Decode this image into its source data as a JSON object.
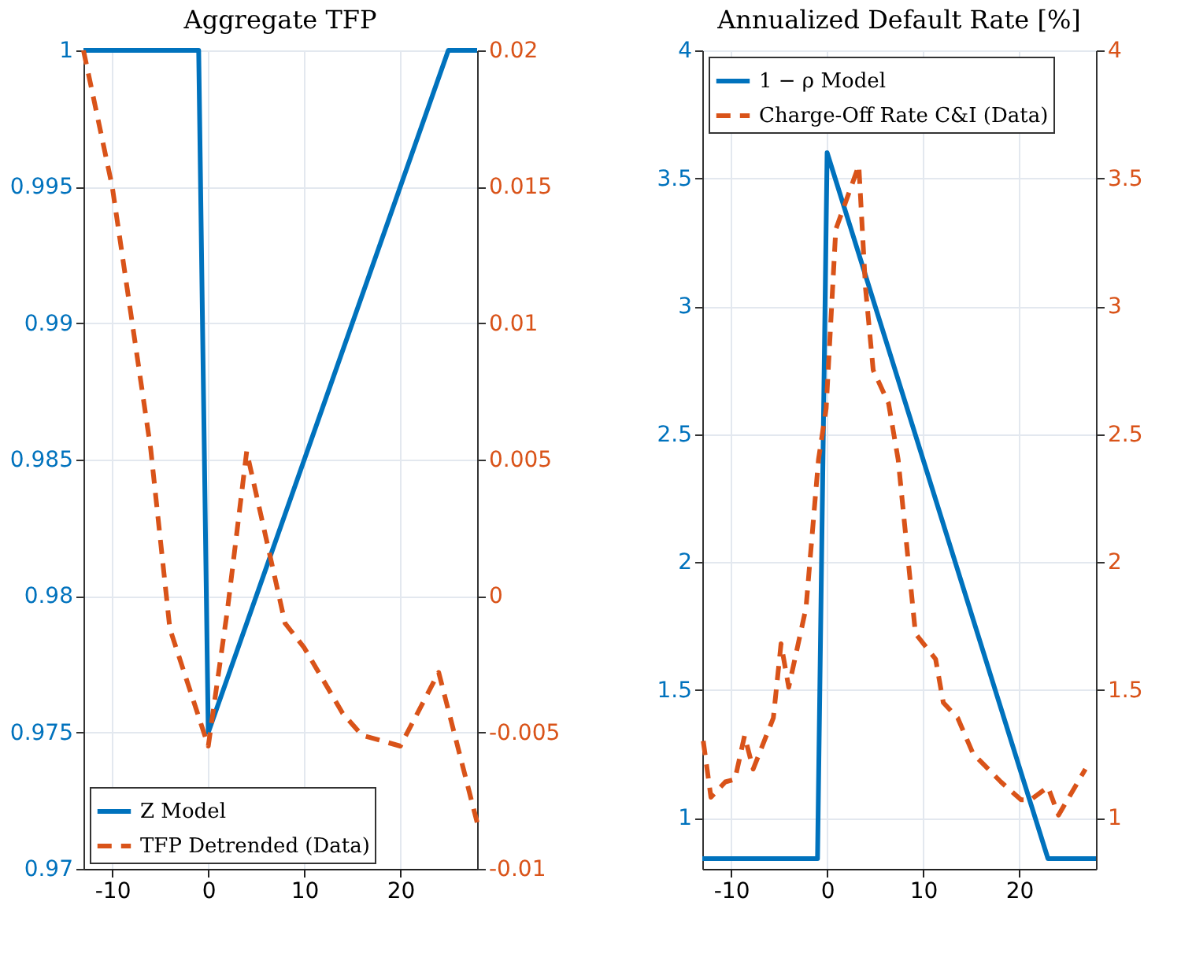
{
  "chart_data": [
    {
      "type": "line",
      "title": "Aggregate TFP",
      "xlim": [
        -13,
        28
      ],
      "xticks": [
        -10,
        0,
        10,
        20
      ],
      "ylim": [
        0.97,
        1
      ],
      "yticks": [
        0.97,
        0.975,
        0.98,
        0.985,
        0.99,
        0.995,
        1
      ],
      "y2lim": [
        -0.01,
        0.02
      ],
      "y2ticks": [
        -0.01,
        -0.005,
        0,
        0.005,
        0.01,
        0.015,
        0.02
      ],
      "grid": true,
      "legend": "bottom left",
      "marker": "none",
      "series": [
        {
          "name": "Z Model",
          "color": "#0072bd",
          "line_style": "solid",
          "x": [
            -13,
            -1,
            0,
            25,
            28
          ],
          "values": [
            1,
            1,
            0.975,
            1,
            1
          ]
        },
        {
          "name": "TFP Detrended (Data)",
          "color": "#d95319",
          "line_style": "dashed",
          "axis": "y2",
          "x": [
            -13,
            -10,
            -6,
            -4,
            0,
            2,
            4,
            8,
            10,
            14,
            16,
            20,
            24,
            28
          ],
          "values": [
            0.02,
            0.015,
            0.0054,
            -0.0012,
            -0.0055,
            -0.0005,
            0.0053,
            -0.001,
            -0.0019,
            -0.0043,
            -0.0051,
            -0.0055,
            -0.0028,
            -0.0083
          ]
        }
      ]
    },
    {
      "type": "line",
      "title": "Annualized Default Rate [%]",
      "xlim": [
        -13,
        28
      ],
      "xticks": [
        -10,
        0,
        10,
        20
      ],
      "ylim": [
        0.8,
        4
      ],
      "yticks": [
        1,
        1.5,
        2,
        2.5,
        3,
        3.5,
        4
      ],
      "y2lim": [
        0.8,
        4
      ],
      "y2ticks": [
        1,
        1.5,
        2,
        2.5,
        3,
        3.5,
        4
      ],
      "grid": true,
      "legend": "top left",
      "marker": "none",
      "series": [
        {
          "name": "1 − ρ Model",
          "color": "#0072bd",
          "line_style": "solid",
          "x": [
            -13,
            -1,
            0,
            23,
            28
          ],
          "values": [
            0.84,
            0.84,
            3.6,
            0.84,
            0.84
          ]
        },
        {
          "name": "Charge-Off Rate C&I (Data)",
          "color": "#d95319",
          "line_style": "dashed",
          "axis": "y2",
          "x": [
            -12.9,
            -12.1,
            -10.6,
            -9.6,
            -8.6,
            -7.7,
            -5.6,
            -4.8,
            -4.0,
            -2.2,
            -0.9,
            -0.1,
            0.9,
            3.3,
            4.0,
            4.8,
            6.4,
            7.4,
            9.2,
            11.3,
            12.1,
            13.6,
            15.2,
            18.1,
            20.2,
            21.2,
            23.0,
            24.1,
            26.9
          ],
          "values": [
            1.3,
            1.08,
            1.14,
            1.15,
            1.32,
            1.19,
            1.39,
            1.68,
            1.51,
            1.82,
            2.4,
            2.6,
            3.3,
            3.55,
            3.07,
            2.75,
            2.62,
            2.4,
            1.72,
            1.62,
            1.45,
            1.39,
            1.25,
            1.14,
            1.07,
            1.07,
            1.12,
            1.01,
            1.19
          ]
        }
      ]
    }
  ]
}
